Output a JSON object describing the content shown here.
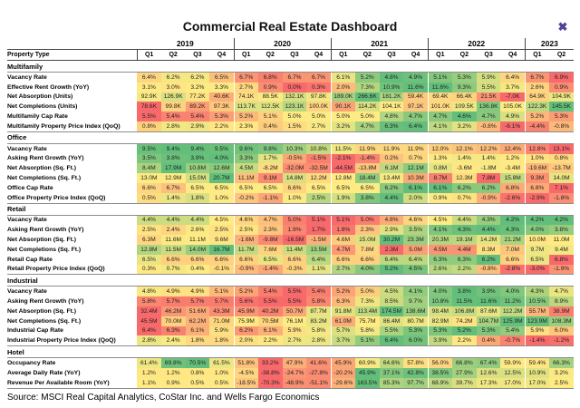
{
  "window": {
    "close_icon": "✖"
  },
  "title": "Commercial Real Estate Dashboard",
  "source_note": "Source: MSCI Real Capital Analytics, CoStar Inc. and Wells Fargo Economics",
  "colors": {
    "scale_low": "#F8696B",
    "scale_mid": "#FFEB84",
    "scale_high": "#63BE7B",
    "close_button": "#4C4399",
    "border_dark": "#444444",
    "border_section": "#8c8c8c"
  },
  "chart_data": {
    "type": "heatmap",
    "title": "Commercial Real Estate Dashboard",
    "row_header": "Property Type",
    "legend_note": "per-row 3-color scale: min=red, median=yellow, max=green; reversed when lower_is_better",
    "year_groups": [
      {
        "year": "2019",
        "quarters": [
          "Q1",
          "Q2",
          "Q3",
          "Q4"
        ]
      },
      {
        "year": "2020",
        "quarters": [
          "Q1",
          "Q2",
          "Q3",
          "Q4"
        ]
      },
      {
        "year": "2021",
        "quarters": [
          "Q1",
          "Q2",
          "Q3",
          "Q4"
        ]
      },
      {
        "year": "2022",
        "quarters": [
          "Q1",
          "Q2",
          "Q3",
          "Q4"
        ]
      },
      {
        "year": "2023",
        "quarters": [
          "Q1",
          "Q2"
        ]
      }
    ],
    "sections": [
      {
        "name": "Multifamily",
        "rows": [
          {
            "label": "Vacancy Rate",
            "lower_is_better": true,
            "values": [
              "6.4%",
              "6.2%",
              "6.2%",
              "6.5%",
              "6.7%",
              "6.8%",
              "6.7%",
              "6.7%",
              "6.1%",
              "5.2%",
              "4.8%",
              "4.9%",
              "5.1%",
              "5.3%",
              "5.9%",
              "6.4%",
              "6.7%",
              "6.9%"
            ]
          },
          {
            "label": "Effective Rent Growth (YoY)",
            "lower_is_better": false,
            "values": [
              "3.1%",
              "3.0%",
              "3.2%",
              "3.3%",
              "2.7%",
              "0.9%",
              "0.0%",
              "0.3%",
              "2.0%",
              "7.3%",
              "10.9%",
              "11.6%",
              "11.6%",
              "9.3%",
              "5.5%",
              "3.7%",
              "2.6%",
              "0.9%"
            ]
          },
          {
            "label": "Net Absorption (Units)",
            "lower_is_better": false,
            "values": [
              "92.9K",
              "126.9K",
              "77.2K",
              "40.6K",
              "74.1K",
              "88.5K",
              "132.1K",
              "97.8K",
              "189.0K",
              "266.6K",
              "181.2K",
              "59.4K",
              "69.4K",
              "66.4K",
              "21.5K",
              "-7.0K",
              "64.9K",
              "104.9K"
            ]
          },
          {
            "label": "Net Completions (Units)",
            "lower_is_better": false,
            "values": [
              "78.6K",
              "99.8K",
              "89.2K",
              "97.3K",
              "113.7K",
              "112.5K",
              "123.1K",
              "100.0K",
              "90.1K",
              "114.2K",
              "104.1K",
              "97.1K",
              "101.0K",
              "109.5K",
              "136.8K",
              "105.0K",
              "122.3K",
              "145.5K"
            ]
          },
          {
            "label": "Multifamily Cap Rate",
            "lower_is_better": true,
            "values": [
              "5.5%",
              "5.4%",
              "5.4%",
              "5.3%",
              "5.2%",
              "5.1%",
              "5.0%",
              "5.0%",
              "5.0%",
              "5.0%",
              "4.8%",
              "4.7%",
              "4.7%",
              "4.6%",
              "4.7%",
              "4.9%",
              "5.2%",
              "5.3%"
            ]
          },
          {
            "label": "Multifamily Property Price Index (QoQ)",
            "lower_is_better": false,
            "values": [
              "0.8%",
              "2.8%",
              "2.9%",
              "2.2%",
              "2.3%",
              "0.4%",
              "1.5%",
              "2.7%",
              "3.2%",
              "4.7%",
              "6.3%",
              "6.4%",
              "4.1%",
              "3.2%",
              "-0.8%",
              "-6.1%",
              "-4.4%",
              "-0.8%"
            ]
          }
        ]
      },
      {
        "name": "Office",
        "rows": [
          {
            "label": "Vacancy Rate",
            "lower_is_better": true,
            "values": [
              "9.5%",
              "9.4%",
              "9.4%",
              "9.5%",
              "9.6%",
              "9.8%",
              "10.3%",
              "10.8%",
              "11.5%",
              "11.9%",
              "11.9%",
              "11.9%",
              "12.0%",
              "12.1%",
              "12.2%",
              "12.4%",
              "12.8%",
              "13.1%"
            ]
          },
          {
            "label": "Asking Rent Growth (YoY)",
            "lower_is_better": false,
            "values": [
              "3.5%",
              "3.8%",
              "3.9%",
              "4.0%",
              "3.3%",
              "1.7%",
              "-0.5%",
              "-1.5%",
              "-2.1%",
              "-1.4%",
              "0.2%",
              "0.7%",
              "1.3%",
              "1.4%",
              "1.4%",
              "1.2%",
              "1.0%",
              "0.8%"
            ]
          },
          {
            "label": "Net Absorption (Sq. Ft.)",
            "lower_is_better": false,
            "values": [
              "8.4M",
              "17.9M",
              "10.8M",
              "12.6M",
              "4.5M",
              "-8.2M",
              "-32.0M",
              "-32.5M",
              "-44.5M",
              "-13.8M",
              "6.1M",
              "12.1M",
              "0.8M",
              "-3.6M",
              "-1.8M",
              "-3.4M",
              "-19.6M",
              "-13.7M"
            ]
          },
          {
            "label": "Net Completions (Sq. Ft.)",
            "lower_is_better": false,
            "values": [
              "13.0M",
              "12.9M",
              "15.0M",
              "20.7M",
              "11.1M",
              "9.1M",
              "14.8M",
              "12.2M",
              "12.8M",
              "18.4M",
              "13.4M",
              "10.3M",
              "8.7M",
              "12.3M",
              "7.8M",
              "15.8M",
              "9.3M",
              "14.0M"
            ]
          },
          {
            "label": "Office Cap Rate",
            "lower_is_better": true,
            "values": [
              "6.6%",
              "6.7%",
              "6.5%",
              "6.5%",
              "6.5%",
              "6.5%",
              "6.6%",
              "6.5%",
              "6.5%",
              "6.5%",
              "6.2%",
              "6.1%",
              "6.1%",
              "6.2%",
              "6.2%",
              "6.8%",
              "6.8%",
              "7.1%"
            ]
          },
          {
            "label": "Office Property Price Index (QoQ)",
            "lower_is_better": false,
            "values": [
              "0.5%",
              "1.4%",
              "1.8%",
              "1.0%",
              "-0.2%",
              "-1.1%",
              "1.0%",
              "2.5%",
              "1.9%",
              "3.8%",
              "4.4%",
              "2.0%",
              "0.9%",
              "0.7%",
              "-0.9%",
              "-2.6%",
              "-2.9%",
              "-1.8%"
            ]
          }
        ]
      },
      {
        "name": "Retail",
        "rows": [
          {
            "label": "Vacancy Rate",
            "lower_is_better": true,
            "values": [
              "4.4%",
              "4.4%",
              "4.4%",
              "4.5%",
              "4.6%",
              "4.7%",
              "5.0%",
              "5.1%",
              "5.1%",
              "5.0%",
              "4.8%",
              "4.6%",
              "4.5%",
              "4.4%",
              "4.3%",
              "4.2%",
              "4.2%",
              "4.2%"
            ]
          },
          {
            "label": "Asking Rent Growth (YoY)",
            "lower_is_better": false,
            "values": [
              "2.5%",
              "2.4%",
              "2.6%",
              "2.5%",
              "2.5%",
              "2.3%",
              "1.9%",
              "1.7%",
              "1.8%",
              "2.3%",
              "2.9%",
              "3.5%",
              "4.1%",
              "4.3%",
              "4.4%",
              "4.3%",
              "4.0%",
              "3.8%"
            ]
          },
          {
            "label": "Net Absorption (Sq. Ft.)",
            "lower_is_better": false,
            "values": [
              "6.3M",
              "11.6M",
              "11.1M",
              "9.6M",
              "-1.6M",
              "-9.8M",
              "-16.5M",
              "-1.5M",
              "4.6M",
              "15.0M",
              "30.2M",
              "23.3M",
              "20.3M",
              "19.1M",
              "14.2M",
              "21.2M",
              "10.0M",
              "11.0M"
            ]
          },
          {
            "label": "Net Completions (Sq. Ft.)",
            "lower_is_better": false,
            "values": [
              "12.8M",
              "11.5M",
              "14.0M",
              "16.7M",
              "11.7M",
              "7.6M",
              "11.4M",
              "13.5M",
              "4.7M",
              "7.8M",
              "2.3M",
              "5.0M",
              "4.5M",
              "4.4M",
              "8.3M",
              "7.0M",
              "9.7M",
              "9.4M"
            ]
          },
          {
            "label": "Retail Cap Rate",
            "lower_is_better": true,
            "values": [
              "6.5%",
              "6.6%",
              "6.6%",
              "6.6%",
              "6.6%",
              "6.5%",
              "6.6%",
              "6.4%",
              "6.6%",
              "6.6%",
              "6.4%",
              "6.4%",
              "6.3%",
              "6.3%",
              "6.2%",
              "6.6%",
              "6.5%",
              "6.8%"
            ]
          },
          {
            "label": "Retail Property Price Index (QoQ)",
            "lower_is_better": false,
            "values": [
              "0.3%",
              "0.7%",
              "0.4%",
              "-0.1%",
              "-0.9%",
              "-1.4%",
              "-0.3%",
              "1.1%",
              "2.7%",
              "4.0%",
              "5.2%",
              "4.5%",
              "2.6%",
              "2.2%",
              "-0.8%",
              "-2.8%",
              "-3.0%",
              "-1.9%"
            ]
          }
        ]
      },
      {
        "name": "Industrial",
        "rows": [
          {
            "label": "Vacancy Rate",
            "lower_is_better": true,
            "values": [
              "4.8%",
              "4.9%",
              "4.9%",
              "5.1%",
              "5.2%",
              "5.4%",
              "5.5%",
              "5.4%",
              "5.2%",
              "5.0%",
              "4.5%",
              "4.1%",
              "4.0%",
              "3.8%",
              "3.9%",
              "4.0%",
              "4.3%",
              "4.7%"
            ]
          },
          {
            "label": "Asking Rent Growth (YoY)",
            "lower_is_better": false,
            "values": [
              "5.8%",
              "5.7%",
              "5.7%",
              "5.7%",
              "5.6%",
              "5.5%",
              "5.5%",
              "5.8%",
              "6.3%",
              "7.3%",
              "8.5%",
              "9.7%",
              "10.8%",
              "11.5%",
              "11.6%",
              "11.2%",
              "10.5%",
              "8.9%"
            ]
          },
          {
            "label": "Net Absorption (Sq. Ft.)",
            "lower_is_better": false,
            "values": [
              "32.4M",
              "46.2M",
              "51.6M",
              "43.3M",
              "45.9M",
              "40.2M",
              "50.7M",
              "87.7M",
              "91.8M",
              "113.4M",
              "174.5M",
              "138.6M",
              "98.4M",
              "106.8M",
              "87.6M",
              "112.2M",
              "55.7M",
              "38.9M"
            ]
          },
          {
            "label": "Net Completions (Sq. Ft.)",
            "lower_is_better": false,
            "values": [
              "45.5M",
              "70.0M",
              "62.2M",
              "71.0M",
              "75.9M",
              "70.5M",
              "76.1M",
              "83.2M",
              "61.0M",
              "75.7M",
              "86.4M",
              "80.7M",
              "82.9M",
              "74.2M",
              "104.7M",
              "125.9M",
              "123.9M",
              "108.3M"
            ]
          },
          {
            "label": "Industrial Cap Rate",
            "lower_is_better": true,
            "values": [
              "6.4%",
              "6.3%",
              "6.1%",
              "5.9%",
              "6.2%",
              "6.1%",
              "5.9%",
              "5.8%",
              "5.7%",
              "5.8%",
              "5.5%",
              "5.3%",
              "5.3%",
              "5.2%",
              "5.3%",
              "5.4%",
              "5.9%",
              "6.0%"
            ]
          },
          {
            "label": "Industrial Property Price Index (QoQ)",
            "lower_is_better": false,
            "values": [
              "2.8%",
              "2.4%",
              "1.8%",
              "1.8%",
              "2.0%",
              "2.2%",
              "2.7%",
              "2.8%",
              "3.7%",
              "5.1%",
              "6.4%",
              "6.0%",
              "3.9%",
              "2.2%",
              "0.4%",
              "-0.7%",
              "-1.4%",
              "-1.2%"
            ]
          }
        ]
      },
      {
        "name": "Hotel",
        "rows": [
          {
            "label": "Occupancy Rate",
            "lower_is_better": false,
            "values": [
              "61.4%",
              "69.8%",
              "70.5%",
              "61.5%",
              "51.8%",
              "33.2%",
              "47.9%",
              "41.6%",
              "45.9%",
              "60.9%",
              "64.6%",
              "57.8%",
              "56.0%",
              "66.8%",
              "67.4%",
              "59.9%",
              "59.4%",
              "66.3%"
            ]
          },
          {
            "label": "Average Daily Rate (YoY)",
            "lower_is_better": false,
            "values": [
              "1.2%",
              "1.2%",
              "0.8%",
              "1.0%",
              "-4.5%",
              "-38.8%",
              "-24.7%",
              "-27.8%",
              "-20.2%",
              "45.9%",
              "37.1%",
              "42.8%",
              "38.5%",
              "27.9%",
              "12.6%",
              "12.5%",
              "10.9%",
              "3.2%"
            ]
          },
          {
            "label": "Revenue Per Available Room (YoY)",
            "lower_is_better": false,
            "values": [
              "1.1%",
              "0.9%",
              "0.5%",
              "0.5%",
              "-18.5%",
              "-70.3%",
              "-48.9%",
              "-51.1%",
              "-29.6%",
              "163.5%",
              "85.3%",
              "97.7%",
              "68.9%",
              "39.7%",
              "17.3%",
              "17.0%",
              "17.0%",
              "2.5%"
            ]
          }
        ]
      }
    ]
  }
}
